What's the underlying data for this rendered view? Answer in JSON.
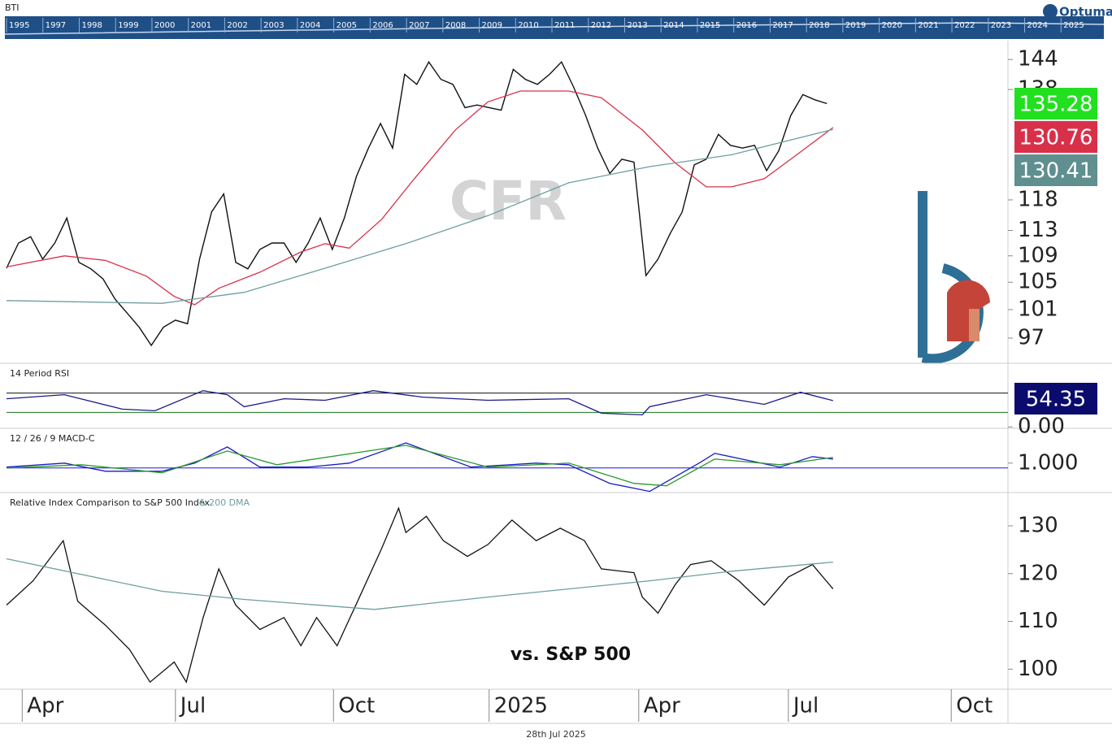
{
  "header": {
    "symbol": "BTI",
    "brand": "Optuma",
    "years": [
      "1995",
      "1997",
      "1998",
      "1999",
      "2000",
      "2001",
      "2002",
      "2003",
      "2004",
      "2005",
      "2006",
      "2007",
      "2008",
      "2009",
      "2010",
      "2011",
      "2012",
      "2013",
      "2014",
      "2015",
      "2016",
      "2017",
      "2018",
      "2019",
      "2020",
      "2021",
      "2022",
      "2023",
      "2024",
      "2025"
    ]
  },
  "footer": {
    "date": "28th Jul 2025"
  },
  "chart_data": [
    {
      "type": "line",
      "watermark": "CFR",
      "log_scale": true,
      "xlim": [
        0,
        83
      ],
      "ylim": [
        93.7,
        147.9
      ],
      "yticks": [
        97,
        101,
        105,
        109,
        113,
        118,
        138,
        144
      ],
      "series": [
        {
          "color": "#111111",
          "badge_color": "#22e01f",
          "x": [
            0,
            1,
            2,
            3,
            4,
            5,
            6,
            7,
            8,
            9,
            10,
            11,
            12,
            13,
            14,
            15,
            16,
            17,
            18,
            19,
            20,
            21,
            22,
            23,
            24,
            25,
            26,
            27,
            28,
            29,
            30,
            31,
            32,
            33,
            34,
            35,
            36,
            37,
            38,
            39,
            40,
            41,
            42,
            43,
            44,
            45,
            46,
            47,
            48,
            49,
            50,
            51,
            52,
            53,
            54,
            55,
            56,
            57,
            58,
            59,
            60,
            61,
            62,
            63,
            64,
            65,
            66,
            67,
            68
          ],
          "values": [
            107.1,
            111,
            112,
            108.5,
            111,
            115,
            108,
            107,
            105.5,
            102.5,
            100.5,
            98.5,
            96,
            98.5,
            99.5,
            99,
            108.5,
            116,
            119,
            108,
            107,
            110,
            111,
            111,
            108,
            111,
            115,
            110,
            115,
            122,
            127,
            131.5,
            127,
            141,
            139,
            143.5,
            140,
            139,
            134.5,
            135,
            134.5,
            134,
            142,
            140,
            139,
            141,
            143.5,
            138.5,
            133,
            127,
            122.5,
            125,
            124.5,
            106,
            108.5,
            112.5,
            116,
            124,
            125,
            129.5,
            127.5,
            127,
            127.5,
            123,
            126.5,
            133,
            137,
            136,
            135.28
          ]
        },
        {
          "color": "#d9304a",
          "badge_color": "#d9304a",
          "x": [
            0,
            4.8,
            8.2,
            11.6,
            13.9,
            15.6,
            17.6,
            21,
            24.4,
            26.4,
            28.4,
            31.1,
            33.8,
            37.2,
            39.9,
            42.6,
            46.6,
            49.3,
            52.7,
            55.4,
            58,
            60.1,
            62.8,
            65.5,
            68.5
          ],
          "values": [
            107.3,
            109,
            108.3,
            105.9,
            102.9,
            101.7,
            104.1,
            106.5,
            109.6,
            110.9,
            110.2,
            114.8,
            121.6,
            130.3,
            135.6,
            137.7,
            137.7,
            136.4,
            130.3,
            124.4,
            120.2,
            120.2,
            121.6,
            125.8,
            130.76
          ]
        },
        {
          "color": "#6f9e9e",
          "badge_color": "#5f8f8f",
          "x": [
            0,
            12.9,
            19.7,
            26.4,
            33.1,
            39.9,
            46.6,
            53.3,
            60.1,
            68.5
          ],
          "values": [
            102.3,
            101.9,
            103.5,
            107.1,
            110.9,
            115.4,
            120.9,
            123.7,
            125.8,
            130.41
          ]
        }
      ]
    },
    {
      "type": "line",
      "title": "14 Period RSI",
      "xlim": [
        0,
        83
      ],
      "ylim": [
        -3,
        130
      ],
      "yticks": [
        {
          "value": 0,
          "label": "0.00"
        }
      ],
      "levels": [
        {
          "value": 70,
          "color": "#111111"
        },
        {
          "value": 30,
          "color": "#1a7a1a"
        }
      ],
      "series": [
        {
          "color": "#1a1a8c",
          "badge_color": "#0b0b6e",
          "x": [
            0,
            4.8,
            9.6,
            12.3,
            16.3,
            18.3,
            19.7,
            23,
            26.4,
            30.4,
            34.5,
            39.9,
            46.6,
            49.3,
            52.7,
            53.3,
            58,
            62.8,
            65.8,
            68.5
          ],
          "values": [
            58.3,
            66.7,
            36.7,
            33.3,
            75,
            66.7,
            41.7,
            58.3,
            55,
            75,
            61.7,
            55,
            58.3,
            28.3,
            25,
            41.7,
            66.7,
            46.7,
            71.7,
            54.35
          ]
        }
      ]
    },
    {
      "type": "line",
      "title": "12 / 26 / 9 MACD-C",
      "xlim": [
        0,
        83
      ],
      "ylim": [
        -4.9,
        8
      ],
      "yticks": [
        {
          "value": 1,
          "label": "1.000"
        }
      ],
      "levels": [
        {
          "value": 0,
          "color": "#1a1acc"
        }
      ],
      "series": [
        {
          "color": "#1a1acc",
          "x": [
            0,
            4.8,
            8.2,
            12.9,
            15.6,
            18.3,
            21,
            25,
            28.4,
            33.1,
            38.5,
            43.9,
            46.6,
            50,
            53.3,
            57.4,
            58.7,
            64.1,
            66.8,
            68.5
          ],
          "values": [
            0.17,
            1,
            -0.67,
            -0.67,
            1,
            4.33,
            0.17,
            0.17,
            1,
            5.17,
            0.17,
            1,
            0.67,
            -3.17,
            -4.83,
            1,
            3,
            0.17,
            2.33,
            1.83
          ]
        },
        {
          "color": "#2a9a2a",
          "x": [
            0,
            6.2,
            12.9,
            18.3,
            22.4,
            33.1,
            39.9,
            46.6,
            52,
            54.7,
            58.7,
            64.1,
            68.5
          ],
          "values": [
            0,
            0.67,
            -1,
            3.5,
            0.67,
            4.67,
            0.17,
            1,
            -3.17,
            -3.67,
            1.83,
            0.67,
            2.17
          ]
        }
      ]
    },
    {
      "type": "line",
      "title": "Relative Index Comparison to S&P 500 Index",
      "annotation": "vs. S&P 500",
      "xlim": [
        0,
        83
      ],
      "ylim": [
        95.8,
        136.8
      ],
      "yticks": [
        100,
        110,
        120,
        130
      ],
      "xticks": [
        {
          "value": 1.3,
          "label": "Apr"
        },
        {
          "value": 14,
          "label": "Jul"
        },
        {
          "value": 27.1,
          "label": "Oct"
        },
        {
          "value": 40,
          "label": "2025"
        },
        {
          "value": 52.4,
          "label": "Apr"
        },
        {
          "value": 64.8,
          "label": "Jul"
        },
        {
          "value": 78.3,
          "label": "Oct"
        }
      ],
      "series": [
        {
          "color": "#111111",
          "x": [
            0,
            2.2,
            4.7,
            5.9,
            8.2,
            10.2,
            11.9,
            13.9,
            14.9,
            16.3,
            17.6,
            19,
            21,
            23,
            24.4,
            25.7,
            27.4,
            29.1,
            31.1,
            32.5,
            33.1,
            34.8,
            36.2,
            38.2,
            39.9,
            41.9,
            43.9,
            45.9,
            47.9,
            49.3,
            52,
            52.7,
            54,
            55.4,
            56.7,
            58.4,
            60.7,
            62.8,
            64.8,
            66.8,
            68.5
          ],
          "values": [
            113.4,
            118.5,
            126.9,
            114.2,
            109.2,
            104.1,
            97.3,
            101.5,
            97.3,
            110.8,
            121,
            113.4,
            108.3,
            110.8,
            104.9,
            110.8,
            104.9,
            114.2,
            125.3,
            133.7,
            128.6,
            132,
            126.9,
            123.6,
            126.1,
            131.2,
            126.9,
            129.5,
            126.9,
            121,
            120.2,
            115.1,
            111.7,
            117.6,
            121.9,
            122.7,
            118.5,
            113.4,
            119.3,
            121.9,
            116.8
          ]
        },
        {
          "name": "& 200 DMA",
          "color": "#6f9e9e",
          "x": [
            0,
            12.9,
            19.7,
            30.5,
            39.9,
            53.3,
            60.1,
            68.5
          ],
          "values": [
            123.1,
            116.3,
            114.6,
            112.5,
            115.1,
            118.5,
            120.5,
            122.4
          ]
        }
      ]
    }
  ]
}
